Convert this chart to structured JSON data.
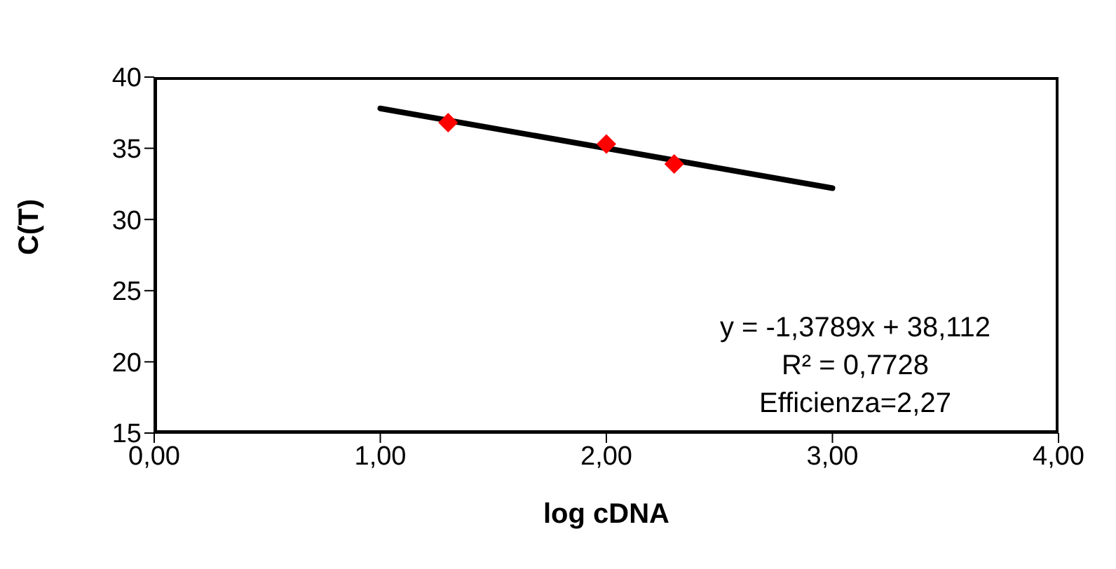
{
  "chart_data": {
    "type": "scatter",
    "xlabel": "log cDNA",
    "ylabel": "C(T)",
    "xlim": [
      0,
      4
    ],
    "xticks": [
      {
        "value": 0,
        "label": "0,00"
      },
      {
        "value": 1,
        "label": "1,00"
      },
      {
        "value": 2,
        "label": "2,00"
      },
      {
        "value": 3,
        "label": "3,00"
      },
      {
        "value": 4,
        "label": "4,00"
      }
    ],
    "ylim": [
      15,
      40
    ],
    "yticks": [
      15,
      20,
      25,
      30,
      35,
      40
    ],
    "series": [
      {
        "color": "#ff0000",
        "marker": "diamond",
        "x": [
          1.3,
          2.0,
          2.3
        ],
        "values": [
          36.8,
          35.3,
          33.9
        ]
      },
      {
        "type": "line",
        "color": "#000000",
        "marker": "none",
        "x": [
          1,
          3
        ],
        "values": [
          37.8,
          32.2
        ]
      }
    ],
    "annotations": [
      "y = -1,3789x + 38,112",
      "R² = 0,7728",
      "Efficienza=2,27"
    ],
    "legend": false
  }
}
